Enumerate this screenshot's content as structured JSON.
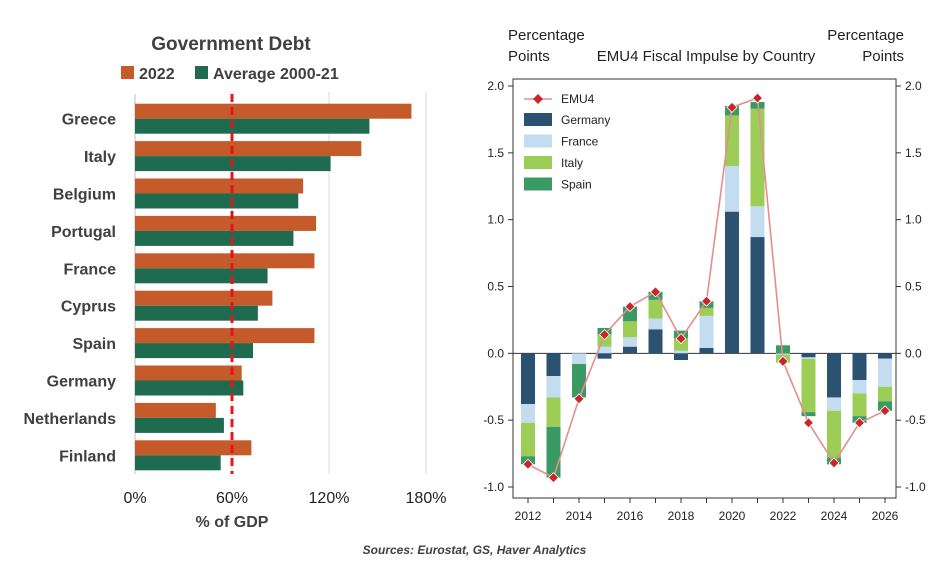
{
  "colors": {
    "y2022": "#c55a2b",
    "avg": "#1f6b4f",
    "refline": "#e8141b",
    "germany": "#2c5272",
    "france": "#c3dcf0",
    "italy": "#9ccd57",
    "spain": "#3a9a63",
    "emu4_line": "#e38e8e",
    "emu4_marker": "#c8262a"
  },
  "source": "Sources: Eurostat, GS, Haver Analytics",
  "chart_data": [
    {
      "type": "bar",
      "orientation": "horizontal",
      "title": "Government Debt",
      "xlabel": "% of GDP",
      "xticks": [
        "0%",
        "60%",
        "120%",
        "180%"
      ],
      "xlim": [
        0,
        180
      ],
      "reference_line": 60,
      "categories": [
        "Greece",
        "Italy",
        "Belgium",
        "Portugal",
        "France",
        "Cyprus",
        "Spain",
        "Germany",
        "Netherlands",
        "Finland"
      ],
      "series": [
        {
          "name": "2022",
          "values": [
            171,
            140,
            104,
            112,
            111,
            85,
            111,
            66,
            50,
            72
          ]
        },
        {
          "name": "Average 2000-21",
          "values": [
            145,
            121,
            101,
            98,
            82,
            76,
            73,
            67,
            55,
            53
          ]
        }
      ]
    },
    {
      "type": "bar",
      "stacked": true,
      "title": "EMU4 Fiscal Impulse by Country",
      "ylabel_left": "Percentage\nPoints",
      "ylabel_right": "Percentage\nPoints",
      "ylim": [
        -1.0,
        2.0
      ],
      "yticks": [
        "-1.0",
        "-0.5",
        "0.0",
        "0.5",
        "1.0",
        "1.5",
        "2.0"
      ],
      "x": [
        2012,
        2013,
        2014,
        2015,
        2016,
        2017,
        2018,
        2019,
        2020,
        2021,
        2022,
        2023,
        2024,
        2025,
        2026
      ],
      "xticks": [
        "2012",
        "2014",
        "2016",
        "2018",
        "2020",
        "2022",
        "2024",
        "2026"
      ],
      "series": [
        {
          "name": "Germany",
          "values": [
            -0.38,
            -0.17,
            0.0,
            -0.04,
            0.05,
            0.18,
            -0.05,
            0.04,
            1.06,
            0.87,
            0.0,
            -0.03,
            -0.33,
            -0.2,
            -0.04
          ]
        },
        {
          "name": "France",
          "values": [
            -0.14,
            -0.16,
            -0.08,
            0.05,
            0.07,
            0.08,
            0.02,
            0.24,
            0.34,
            0.23,
            -0.01,
            -0.01,
            -0.1,
            -0.1,
            -0.21
          ]
        },
        {
          "name": "Italy",
          "values": [
            -0.25,
            -0.22,
            0.0,
            0.09,
            0.12,
            0.14,
            0.09,
            0.06,
            0.38,
            0.73,
            -0.06,
            -0.4,
            -0.35,
            -0.17,
            -0.11
          ]
        },
        {
          "name": "Spain",
          "values": [
            -0.06,
            -0.38,
            -0.25,
            0.05,
            0.11,
            0.06,
            0.06,
            0.05,
            0.07,
            0.05,
            0.06,
            -0.03,
            -0.05,
            -0.05,
            -0.07
          ]
        }
      ],
      "line": {
        "name": "EMU4",
        "values": [
          -0.83,
          -0.93,
          -0.34,
          0.14,
          0.35,
          0.46,
          0.11,
          0.39,
          1.84,
          1.91,
          -0.06,
          -0.52,
          -0.82,
          -0.52,
          -0.43
        ]
      }
    }
  ]
}
